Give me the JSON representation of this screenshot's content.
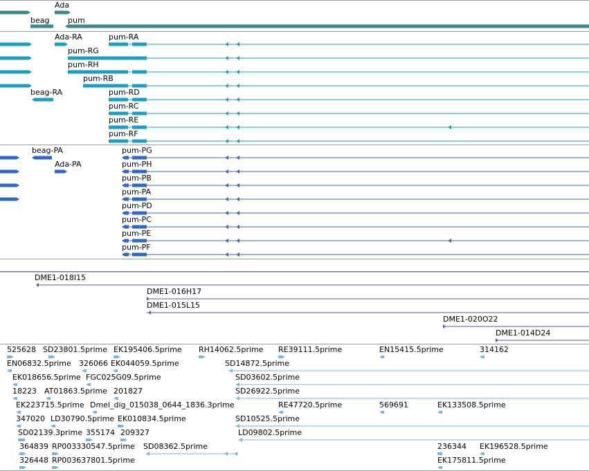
{
  "colors": {
    "gene": "#3a8a8a",
    "transcript": "#1aa0bf",
    "protein": "#2f67c4",
    "bac": "#7050a8",
    "est": "#7ab2d9",
    "divider": "#9a9a9a"
  },
  "tracks": {
    "genes": {
      "items": [
        {
          "id": "g-ada",
          "label": "Ada"
        },
        {
          "id": "g-beag",
          "label": "beag"
        },
        {
          "id": "g-pum",
          "label": "pum"
        }
      ]
    },
    "transcripts": {
      "items": [
        {
          "id": "t-ada-ra",
          "label": "Ada-RA"
        },
        {
          "id": "t-pum-ra",
          "label": "pum-RA"
        },
        {
          "id": "t-pum-rg",
          "label": "pum-RG"
        },
        {
          "id": "t-pum-rh",
          "label": "pum-RH"
        },
        {
          "id": "t-pum-rb",
          "label": "pum-RB"
        },
        {
          "id": "t-beag-ra",
          "label": "beag-RA"
        },
        {
          "id": "t-pum-rd",
          "label": "pum-RD"
        },
        {
          "id": "t-pum-rc",
          "label": "pum-RC"
        },
        {
          "id": "t-pum-re",
          "label": "pum-RE"
        },
        {
          "id": "t-pum-rf",
          "label": "pum-RF"
        }
      ]
    },
    "proteins": {
      "items": [
        {
          "id": "p-beag-pa",
          "label": "beag-PA"
        },
        {
          "id": "p-ada-pa",
          "label": "Ada-PA"
        },
        {
          "id": "p-pum-pg",
          "label": "pum-PG"
        },
        {
          "id": "p-pum-ph",
          "label": "pum-PH"
        },
        {
          "id": "p-pum-pb",
          "label": "pum-PB"
        },
        {
          "id": "p-pum-pa",
          "label": "pum-PA"
        },
        {
          "id": "p-pum-pd",
          "label": "pum-PD"
        },
        {
          "id": "p-pum-pc",
          "label": "pum-PC"
        },
        {
          "id": "p-pum-pe",
          "label": "pum-PE"
        },
        {
          "id": "p-pum-pf",
          "label": "pum-PF"
        }
      ]
    },
    "bacs": {
      "items": [
        {
          "id": "b-018i15",
          "label": "DME1-018I15"
        },
        {
          "id": "b-016h17",
          "label": "DME1-016H17"
        },
        {
          "id": "b-015l15",
          "label": "DME1-015L15"
        },
        {
          "id": "b-020o22",
          "label": "DME1-020O22"
        },
        {
          "id": "b-014d24",
          "label": "DME1-014D24"
        }
      ]
    },
    "ests": {
      "items": [
        {
          "label": "525628"
        },
        {
          "label": "SD23801.5prime"
        },
        {
          "label": "EK195406.5prime"
        },
        {
          "label": "RH14062.5prime"
        },
        {
          "label": "RE39111.5prime"
        },
        {
          "label": "EN15415.5prime"
        },
        {
          "label": "314162"
        },
        {
          "label": "EN06832.5prime"
        },
        {
          "label": "326066"
        },
        {
          "label": "EK044059.5prime"
        },
        {
          "label": "SD14872.5prime"
        },
        {
          "label": "EK018656.5prime"
        },
        {
          "label": "FGC025G09.5prime"
        },
        {
          "label": "SD03602.5prime"
        },
        {
          "label": "18223"
        },
        {
          "label": "AT01863.5prime"
        },
        {
          "label": "201827"
        },
        {
          "label": "SD26922.5prime"
        },
        {
          "label": "EK223715.5prime"
        },
        {
          "label": "Dmel_dig_015038_0644_1836.3prime"
        },
        {
          "label": "RE47720.5prime"
        },
        {
          "label": "569691"
        },
        {
          "label": "EK133508.5prime"
        },
        {
          "label": "347020"
        },
        {
          "label": "LD30790.5prime"
        },
        {
          "label": "EK010834.5prime"
        },
        {
          "label": "SD10525.5prime"
        },
        {
          "label": "SD02139.3prime"
        },
        {
          "label": "355174"
        },
        {
          "label": "209327"
        },
        {
          "label": "LD09802.5prime"
        },
        {
          "label": "364839"
        },
        {
          "label": "RP003330547.5prime"
        },
        {
          "label": "SD08362.5prime"
        },
        {
          "label": "236344"
        },
        {
          "label": "EK196528.5prime"
        },
        {
          "label": "326448"
        },
        {
          "label": "RP003637801.5prime"
        },
        {
          "label": "EK175811.5prime"
        }
      ]
    }
  }
}
